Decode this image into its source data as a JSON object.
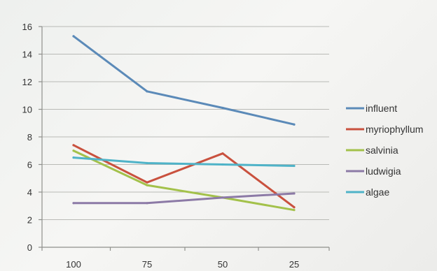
{
  "chart_data": {
    "type": "line",
    "categories": [
      "100",
      "75",
      "50",
      "25"
    ],
    "ylim": [
      0,
      16
    ],
    "yticks": [
      0,
      2,
      4,
      6,
      8,
      10,
      12,
      14,
      16
    ],
    "grid": true,
    "legend_position": "right",
    "series": [
      {
        "name": "influent",
        "color": "#5b8ab8",
        "values": [
          15.3,
          11.3,
          10.1,
          8.9
        ]
      },
      {
        "name": "myriophyllum",
        "color": "#c9513e",
        "values": [
          7.4,
          4.7,
          6.8,
          2.9
        ]
      },
      {
        "name": "salvinia",
        "color": "#a3c14a",
        "values": [
          7.0,
          4.5,
          3.6,
          2.7
        ]
      },
      {
        "name": "ludwigia",
        "color": "#8c7aa6",
        "values": [
          3.2,
          3.2,
          3.6,
          3.9
        ]
      },
      {
        "name": "algae",
        "color": "#4fb3c8",
        "values": [
          6.5,
          6.1,
          6.0,
          5.9
        ]
      }
    ]
  }
}
